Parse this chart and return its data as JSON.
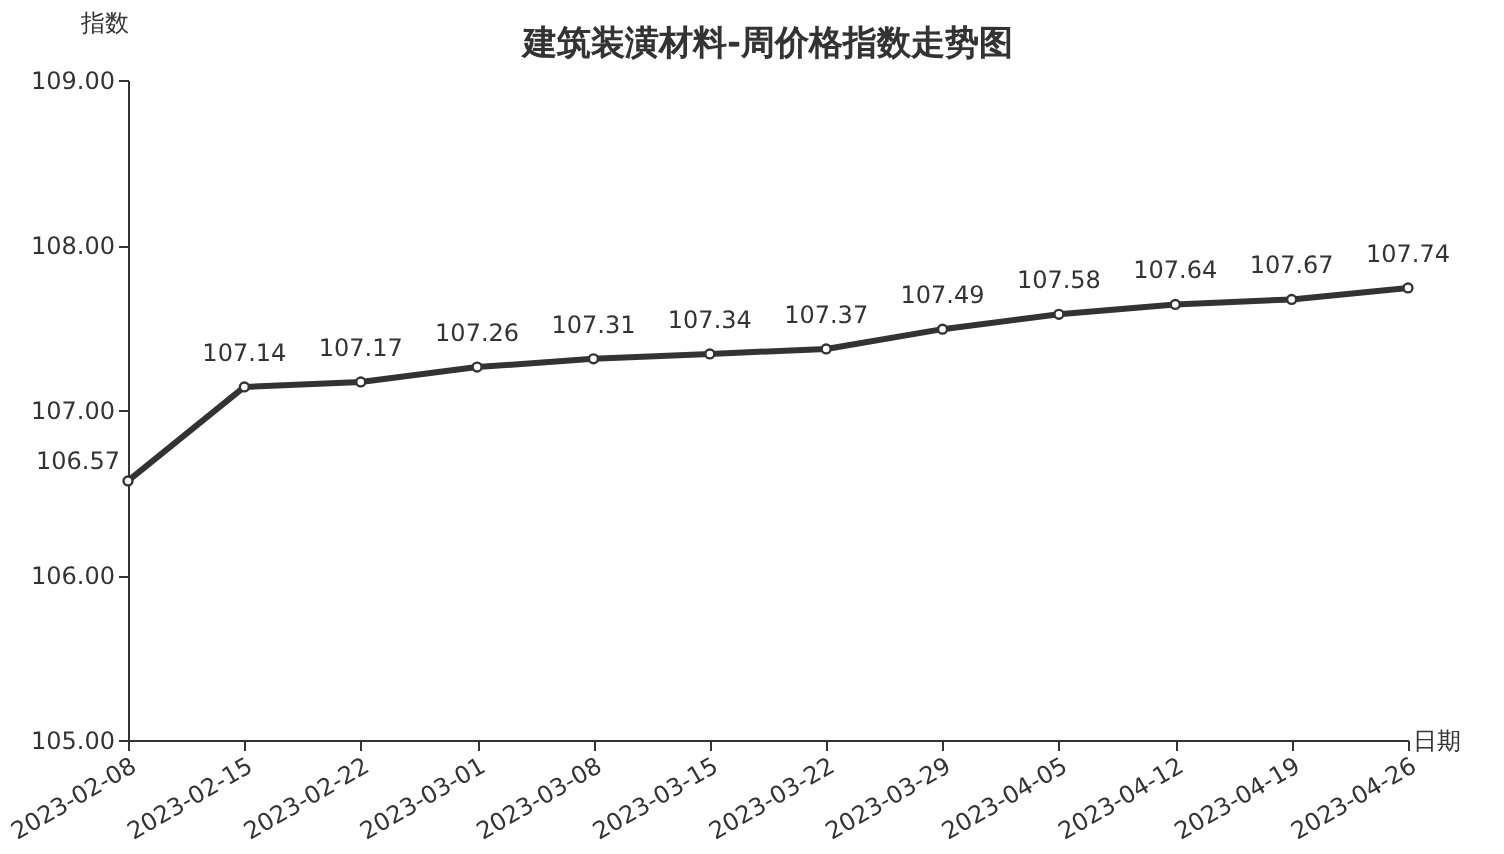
{
  "chart_data": {
    "type": "line",
    "title": "建筑装潢材料-周价格指数走势图",
    "xlabel": "日期",
    "ylabel": "指数",
    "categories": [
      "2023-02-08",
      "2023-02-15",
      "2023-02-22",
      "2023-03-01",
      "2023-03-08",
      "2023-03-15",
      "2023-03-22",
      "2023-03-29",
      "2023-04-05",
      "2023-04-12",
      "2023-04-19",
      "2023-04-26"
    ],
    "series": [
      {
        "color": "#333333",
        "values": [
          106.57,
          107.14,
          107.17,
          107.26,
          107.31,
          107.34,
          107.37,
          107.49,
          107.58,
          107.64,
          107.67,
          107.74
        ]
      }
    ],
    "ylim": [
      105,
      109
    ],
    "yticks": [
      {
        "value": 105,
        "label": "105.00"
      },
      {
        "value": 106,
        "label": "106.00"
      },
      {
        "value": 107,
        "label": "107.00"
      },
      {
        "value": 108,
        "label": "108.00"
      },
      {
        "value": 109,
        "label": "109.00"
      }
    ],
    "data_labels": true,
    "marker": "circle"
  }
}
